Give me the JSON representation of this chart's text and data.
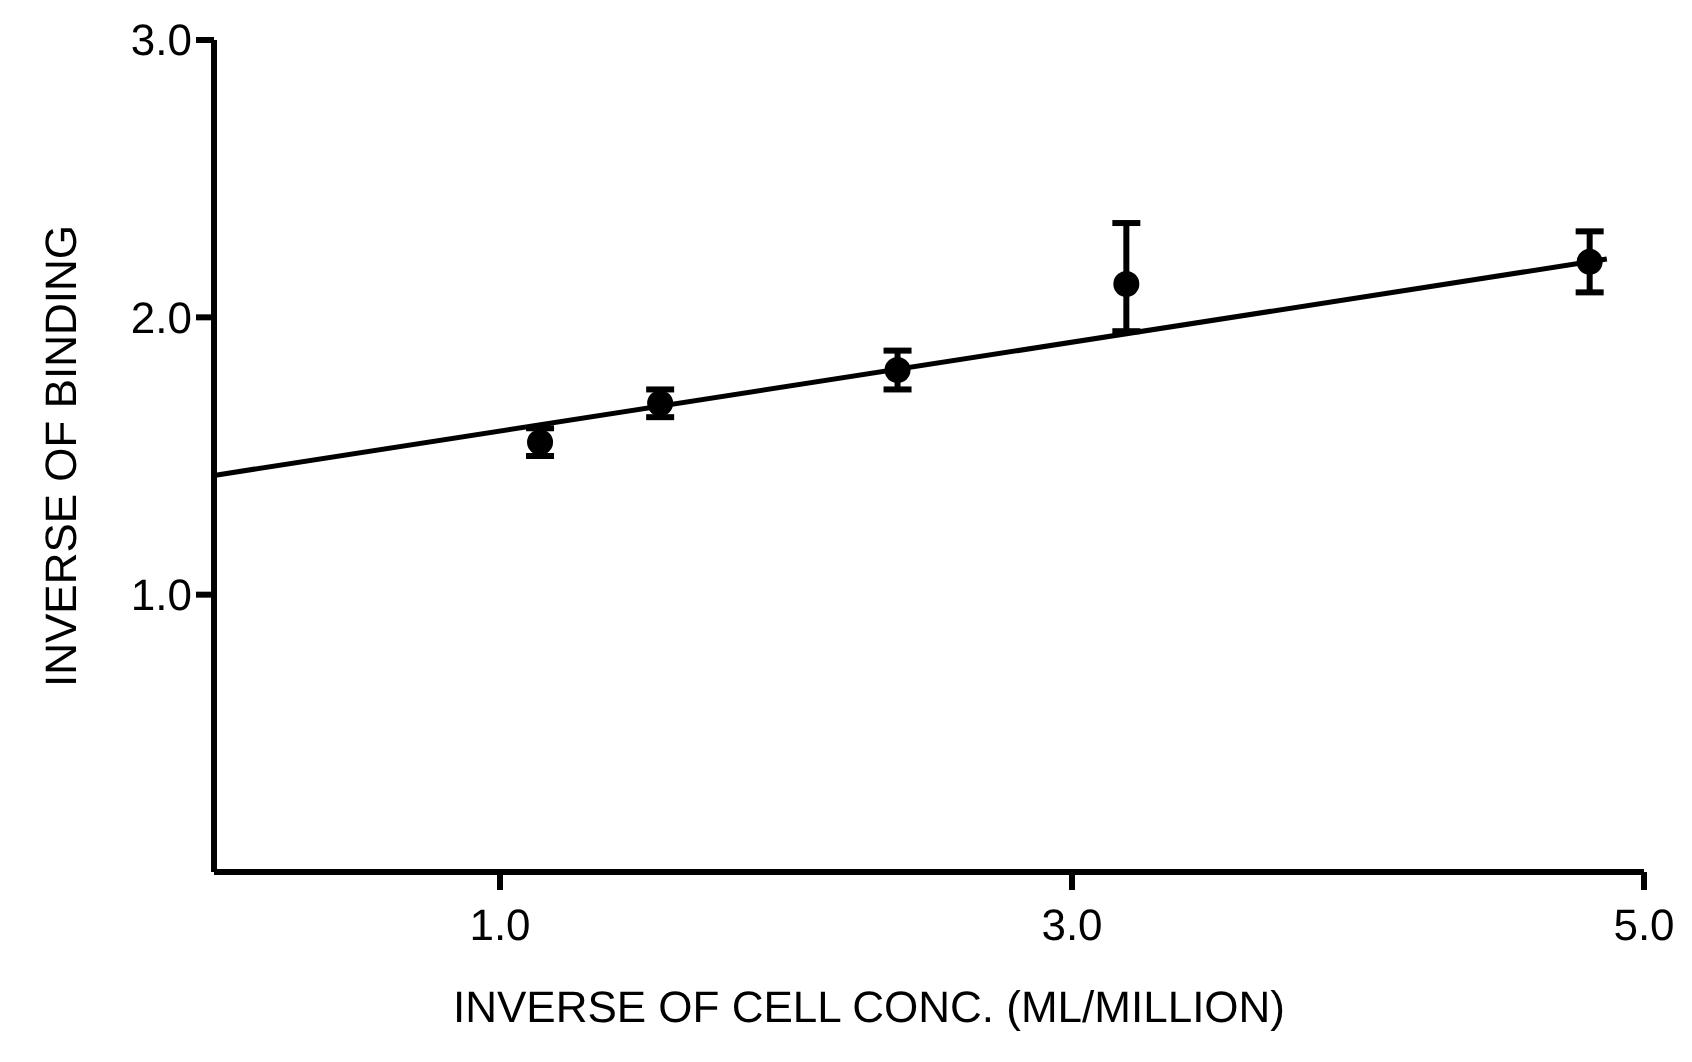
{
  "chart_data": {
    "type": "scatter",
    "xlabel": "INVERSE OF CELL CONC. (ML/MILLION)",
    "ylabel": "INVERSE OF BINDING",
    "xlim": [
      0,
      5
    ],
    "ylim": [
      0,
      3
    ],
    "xticks": [
      {
        "value": 1,
        "label": "1.0"
      },
      {
        "value": 3,
        "label": "3.0"
      },
      {
        "value": 5,
        "label": "5.0"
      }
    ],
    "yticks": [
      {
        "value": 1,
        "label": "1.0"
      },
      {
        "value": 2,
        "label": "2.0"
      },
      {
        "value": 3,
        "label": "3.0"
      }
    ],
    "grid": false,
    "marker": "circle",
    "series": [
      {
        "color": "#000000",
        "x": [
          1.14,
          1.56,
          2.39,
          3.19,
          4.81
        ],
        "values": [
          1.55,
          1.69,
          1.81,
          2.12,
          2.2
        ],
        "errors": [
          0.05,
          0.05,
          0.07,
          [
            1.95,
            2.34
          ],
          0.11
        ]
      },
      {
        "type": "line",
        "color": "#000000",
        "x": [
          0,
          4.87
        ],
        "values": [
          1.43,
          2.21
        ],
        "marker": "none",
        "line_style": "solid"
      }
    ]
  }
}
